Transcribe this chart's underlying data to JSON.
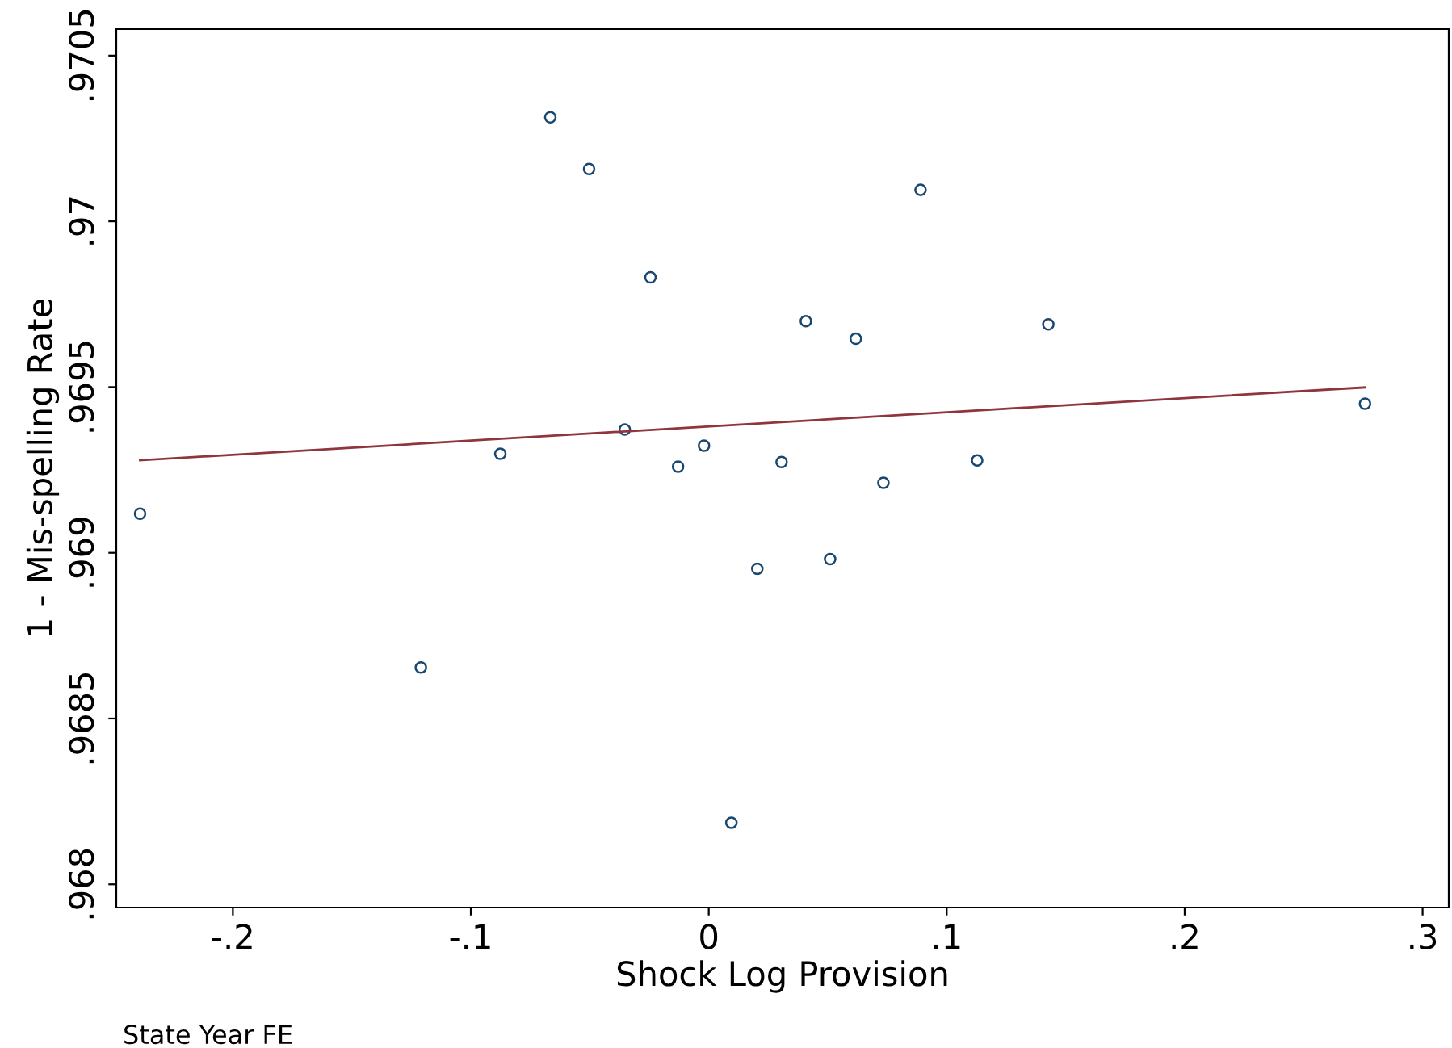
{
  "chart_data": {
    "type": "scatter",
    "xlabel": "Shock Log Provision",
    "ylabel": "1 - Mis-spelling Rate",
    "annotations": [
      "State Year FE"
    ],
    "grid": false,
    "xlim": [
      -0.249,
      0.311
    ],
    "ylim": [
      0.96793,
      0.97058
    ],
    "xticks": [
      {
        "value": -0.2,
        "label": "-.2"
      },
      {
        "value": -0.1,
        "label": "-.1"
      },
      0,
      {
        "value": 0.1,
        "label": ".1"
      },
      {
        "value": 0.2,
        "label": ".2"
      },
      {
        "value": 0.3,
        "label": ".3"
      }
    ],
    "yticks": [
      {
        "value": 0.968,
        "label": ".968"
      },
      {
        "value": 0.9685,
        "label": ".9685"
      },
      {
        "value": 0.969,
        "label": ".969"
      },
      {
        "value": 0.9695,
        "label": ".9695"
      },
      {
        "value": 0.97,
        "label": ".97"
      },
      {
        "value": 0.9705,
        "label": ".9705"
      }
    ],
    "series": [
      {
        "color": "#1a476f",
        "marker": "circle",
        "x": [
          -0.239,
          -0.121,
          -0.0876,
          -0.0666,
          -0.0503,
          -0.0353,
          -0.0245,
          -0.0129,
          -0.002,
          0.0095,
          0.0204,
          0.0306,
          0.0408,
          0.051,
          0.0618,
          0.0734,
          0.089,
          0.1128,
          0.1427,
          0.2758
        ],
        "values": [
          0.969118,
          0.968654,
          0.969299,
          0.970314,
          0.970158,
          0.969372,
          0.969831,
          0.96926,
          0.969323,
          0.968186,
          0.968952,
          0.969274,
          0.969699,
          0.968981,
          0.969646,
          0.969211,
          0.970095,
          0.969279,
          0.969689,
          0.96945
        ]
      },
      {
        "type": "line",
        "marker": "none",
        "color": "#90353b",
        "x": [
          -0.239,
          0.2758
        ],
        "values": [
          0.969279,
          0.969499
        ]
      }
    ]
  }
}
